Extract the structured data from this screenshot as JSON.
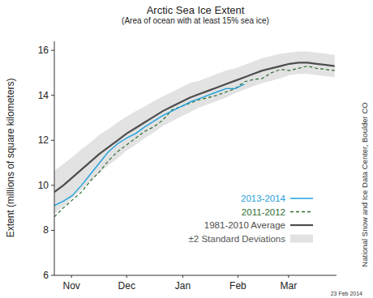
{
  "chart_data": {
    "type": "line",
    "title": "Arctic Sea Ice Extent",
    "subtitle": "(Area of ocean with at least 15% sea ice)",
    "y_label": "Extent (millions of square kilometers)",
    "annotations": [
      "National Snow and Ice Data Center, Boulder CO",
      "23 Feb 2014"
    ],
    "x": [
      5,
      10,
      15,
      20,
      25,
      30,
      35,
      40,
      45,
      50,
      55,
      60,
      65,
      70,
      75,
      80,
      85,
      90,
      95,
      100,
      105,
      110,
      115,
      120,
      125,
      130,
      135,
      140,
      145,
      150,
      155,
      160
    ],
    "xlim": [
      5,
      161
    ],
    "xticks": [
      {
        "value": 14.5,
        "label": "Nov"
      },
      {
        "value": 45,
        "label": "Dec"
      },
      {
        "value": 76,
        "label": "Jan"
      },
      {
        "value": 106.5,
        "label": "Feb"
      },
      {
        "value": 134.5,
        "label": "Mar"
      }
    ],
    "ylim": [
      6,
      16.4
    ],
    "yticks": [
      6,
      8,
      10,
      12,
      14,
      16
    ],
    "grid": false,
    "legend": "lower right",
    "series": [
      {
        "name": "2013-2014",
        "color": "#1ea0dc",
        "line_style": "solid",
        "values": [
          9.1,
          9.3,
          9.55,
          10.0,
          10.5,
          11.0,
          11.5,
          11.85,
          12.1,
          12.3,
          12.6,
          12.85,
          13.1,
          13.3,
          13.5,
          13.7,
          13.85,
          14.0,
          14.15,
          14.3,
          14.3,
          14.5,
          null,
          null,
          null,
          null,
          null,
          null,
          null,
          null,
          null,
          null
        ]
      },
      {
        "name": "2011-2012",
        "color": "#2e6b2e",
        "line_style": "dashed",
        "values": [
          8.6,
          9.0,
          9.35,
          9.7,
          10.2,
          10.6,
          11.1,
          11.5,
          11.8,
          12.1,
          12.4,
          12.6,
          12.9,
          13.35,
          13.5,
          13.65,
          13.8,
          13.9,
          14.0,
          14.15,
          14.3,
          14.6,
          14.7,
          14.75,
          15.0,
          15.15,
          15.1,
          15.2,
          15.3,
          15.2,
          15.15,
          15.1
        ]
      },
      {
        "name": "1981-2010 Average",
        "color": "#4d4d4d",
        "line_style": "solid",
        "values": [
          9.7,
          10.0,
          10.35,
          10.7,
          11.05,
          11.4,
          11.7,
          12.0,
          12.3,
          12.55,
          12.8,
          13.05,
          13.3,
          13.5,
          13.7,
          13.9,
          14.05,
          14.2,
          14.35,
          14.5,
          14.65,
          14.8,
          14.95,
          15.1,
          15.2,
          15.3,
          15.4,
          15.45,
          15.45,
          15.4,
          15.35,
          15.3
        ]
      },
      {
        "name": "±2 Standard Deviations",
        "color": "#e2e2e2",
        "type": "band",
        "values": [
          10.65,
          10.95,
          11.25,
          11.6,
          11.9,
          12.25,
          12.5,
          12.8,
          13.05,
          13.3,
          13.5,
          13.75,
          13.95,
          14.15,
          14.35,
          14.55,
          14.65,
          14.8,
          14.95,
          15.1,
          15.2,
          15.35,
          15.5,
          15.65,
          15.75,
          15.85,
          15.9,
          15.95,
          15.95,
          15.9,
          15.85,
          15.8
        ],
        "lower": [
          8.75,
          9.05,
          9.45,
          9.8,
          10.2,
          10.55,
          10.9,
          11.2,
          11.55,
          11.8,
          12.1,
          12.35,
          12.65,
          12.85,
          13.05,
          13.25,
          13.45,
          13.6,
          13.75,
          13.9,
          14.1,
          14.25,
          14.4,
          14.55,
          14.65,
          14.75,
          14.9,
          14.95,
          14.95,
          14.9,
          14.85,
          14.8
        ]
      }
    ]
  }
}
